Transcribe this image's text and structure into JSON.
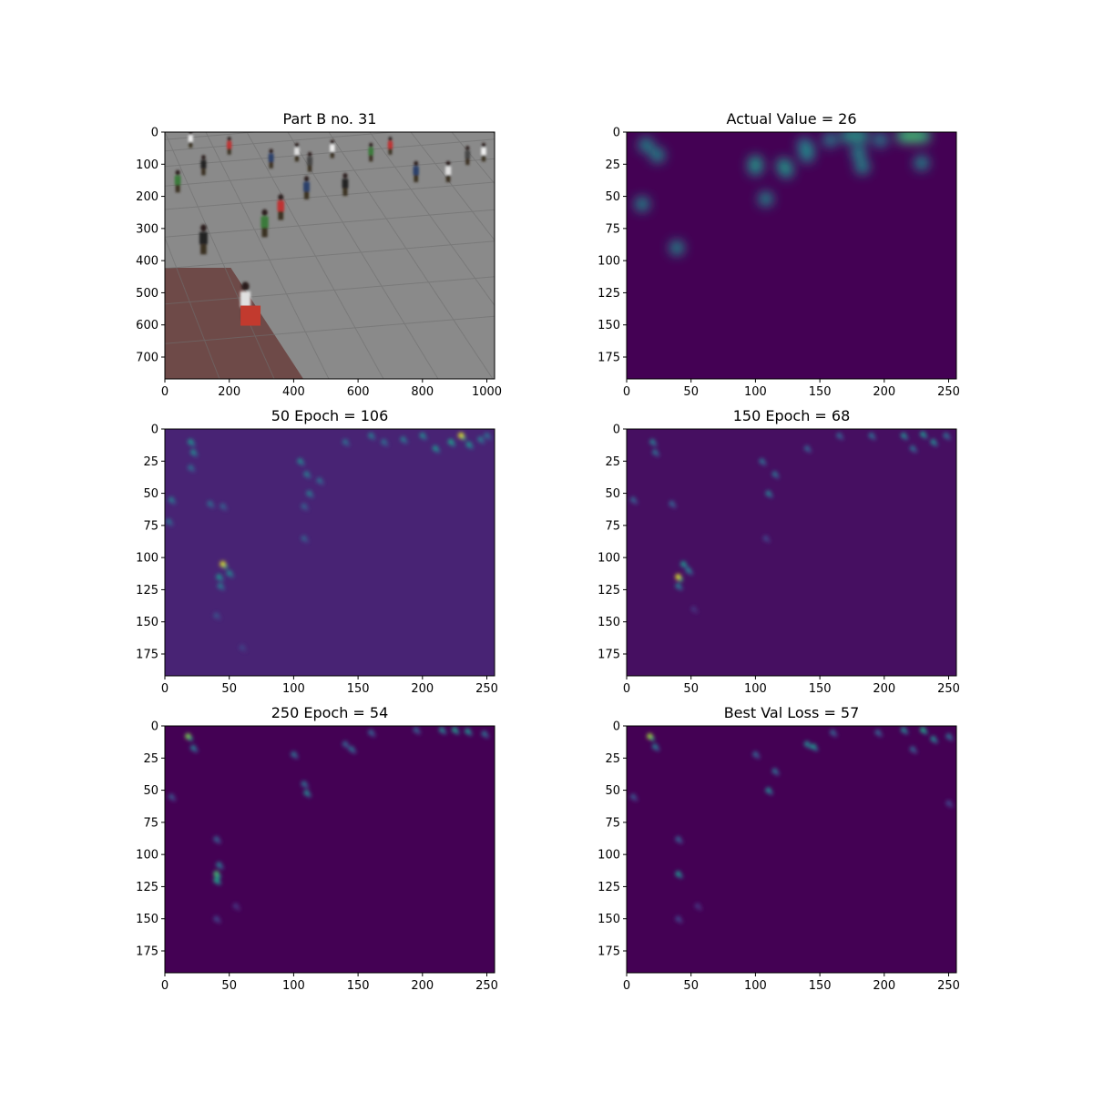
{
  "figure": {
    "background": "#ffffff",
    "layout": "3x2 grid"
  },
  "colors": {
    "viridis_low": "#440154",
    "viridis_mid": "#21918c",
    "viridis_high": "#fde725",
    "pavement": "#8a8a8a",
    "brick": "#6e4a48"
  },
  "chart_data": [
    {
      "type": "heatmap",
      "title": "Part B no. 31",
      "content": "photo",
      "xlim": [
        0,
        1024
      ],
      "ylim": [
        768,
        0
      ],
      "xticks": [
        0,
        200,
        400,
        600,
        800,
        1000
      ],
      "yticks": [
        0,
        100,
        200,
        300,
        400,
        500,
        600,
        700
      ],
      "crowd": [
        [
          80,
          20
        ],
        [
          120,
          100
        ],
        [
          40,
          150
        ],
        [
          200,
          40
        ],
        [
          330,
          80
        ],
        [
          410,
          60
        ],
        [
          450,
          90
        ],
        [
          520,
          50
        ],
        [
          560,
          160
        ],
        [
          640,
          60
        ],
        [
          700,
          40
        ],
        [
          780,
          120
        ],
        [
          880,
          120
        ],
        [
          940,
          70
        ],
        [
          990,
          60
        ],
        [
          120,
          330
        ],
        [
          310,
          280
        ],
        [
          360,
          230
        ],
        [
          440,
          170
        ],
        [
          250,
          520
        ]
      ]
    },
    {
      "type": "heatmap",
      "title": "Actual Value = 26",
      "content": "ground_truth",
      "background": 0.0,
      "xlim": [
        0,
        256
      ],
      "ylim": [
        192,
        0
      ],
      "xticks": [
        0,
        50,
        100,
        150,
        200,
        250
      ],
      "yticks": [
        0,
        25,
        50,
        75,
        100,
        125,
        150,
        175
      ],
      "blobs": [
        [
          15,
          10,
          0.5
        ],
        [
          24,
          18,
          0.5
        ],
        [
          100,
          24,
          0.55
        ],
        [
          100,
          28,
          0.5
        ],
        [
          122,
          26,
          0.55
        ],
        [
          124,
          30,
          0.5
        ],
        [
          140,
          14,
          0.5
        ],
        [
          140,
          18,
          0.45
        ],
        [
          138,
          10,
          0.4
        ],
        [
          158,
          6,
          0.45
        ],
        [
          172,
          3,
          0.55
        ],
        [
          182,
          3,
          0.55
        ],
        [
          180,
          16,
          0.5
        ],
        [
          183,
          27,
          0.5
        ],
        [
          197,
          6,
          0.45
        ],
        [
          215,
          3,
          0.65
        ],
        [
          222,
          3,
          0.7
        ],
        [
          230,
          3,
          0.65
        ],
        [
          229,
          24,
          0.5
        ],
        [
          108,
          52,
          0.5
        ],
        [
          12,
          56,
          0.5
        ],
        [
          39,
          90,
          0.5
        ]
      ]
    },
    {
      "type": "heatmap",
      "title": "50 Epoch = 106",
      "content": "prediction",
      "background": 0.1,
      "xlim": [
        0,
        256
      ],
      "ylim": [
        192,
        0
      ],
      "xticks": [
        0,
        50,
        100,
        150,
        200,
        250
      ],
      "yticks": [
        0,
        25,
        50,
        75,
        100,
        125,
        150,
        175
      ],
      "blobs": [
        [
          20,
          10,
          0.5
        ],
        [
          22,
          18,
          0.45
        ],
        [
          20,
          30,
          0.35
        ],
        [
          5,
          55,
          0.4
        ],
        [
          35,
          58,
          0.35
        ],
        [
          45,
          60,
          0.3
        ],
        [
          3,
          72,
          0.35
        ],
        [
          105,
          25,
          0.45
        ],
        [
          110,
          35,
          0.4
        ],
        [
          120,
          40,
          0.35
        ],
        [
          112,
          50,
          0.4
        ],
        [
          108,
          60,
          0.3
        ],
        [
          140,
          10,
          0.35
        ],
        [
          160,
          5,
          0.4
        ],
        [
          170,
          10,
          0.35
        ],
        [
          185,
          8,
          0.4
        ],
        [
          200,
          5,
          0.45
        ],
        [
          210,
          15,
          0.5
        ],
        [
          222,
          10,
          0.55
        ],
        [
          230,
          5,
          0.95
        ],
        [
          236,
          12,
          0.5
        ],
        [
          245,
          8,
          0.4
        ],
        [
          250,
          5,
          0.35
        ],
        [
          45,
          105,
          0.95
        ],
        [
          42,
          115,
          0.5
        ],
        [
          50,
          112,
          0.45
        ],
        [
          43,
          122,
          0.4
        ],
        [
          108,
          85,
          0.3
        ],
        [
          40,
          145,
          0.25
        ],
        [
          60,
          170,
          0.2
        ]
      ]
    },
    {
      "type": "heatmap",
      "title": "150 Epoch = 68",
      "content": "prediction",
      "background": 0.04,
      "xlim": [
        0,
        256
      ],
      "ylim": [
        192,
        0
      ],
      "xticks": [
        0,
        50,
        100,
        150,
        200,
        250
      ],
      "yticks": [
        0,
        25,
        50,
        75,
        100,
        125,
        150,
        175
      ],
      "blobs": [
        [
          20,
          10,
          0.4
        ],
        [
          22,
          18,
          0.35
        ],
        [
          5,
          55,
          0.3
        ],
        [
          35,
          58,
          0.3
        ],
        [
          105,
          25,
          0.35
        ],
        [
          115,
          35,
          0.35
        ],
        [
          110,
          50,
          0.4
        ],
        [
          140,
          15,
          0.3
        ],
        [
          165,
          5,
          0.3
        ],
        [
          190,
          5,
          0.35
        ],
        [
          215,
          5,
          0.45
        ],
        [
          230,
          4,
          0.5
        ],
        [
          238,
          10,
          0.45
        ],
        [
          248,
          5,
          0.35
        ],
        [
          222,
          15,
          0.35
        ],
        [
          40,
          115,
          0.95
        ],
        [
          44,
          105,
          0.5
        ],
        [
          48,
          110,
          0.4
        ],
        [
          40,
          122,
          0.4
        ],
        [
          108,
          85,
          0.2
        ],
        [
          52,
          140,
          0.15
        ]
      ]
    },
    {
      "type": "heatmap",
      "title": "250 Epoch = 54",
      "content": "prediction",
      "background": 0.0,
      "xlim": [
        0,
        256
      ],
      "ylim": [
        192,
        0
      ],
      "xticks": [
        0,
        50,
        100,
        150,
        200,
        250
      ],
      "yticks": [
        0,
        25,
        50,
        75,
        100,
        125,
        150,
        175
      ],
      "blobs": [
        [
          18,
          8,
          0.8
        ],
        [
          22,
          17,
          0.4
        ],
        [
          5,
          55,
          0.25
        ],
        [
          100,
          22,
          0.35
        ],
        [
          108,
          45,
          0.35
        ],
        [
          110,
          52,
          0.45
        ],
        [
          140,
          14,
          0.3
        ],
        [
          145,
          18,
          0.35
        ],
        [
          160,
          5,
          0.3
        ],
        [
          195,
          3,
          0.3
        ],
        [
          215,
          3,
          0.45
        ],
        [
          225,
          3,
          0.55
        ],
        [
          235,
          4,
          0.5
        ],
        [
          248,
          6,
          0.35
        ],
        [
          40,
          115,
          0.7
        ],
        [
          40,
          120,
          0.6
        ],
        [
          42,
          108,
          0.4
        ],
        [
          40,
          88,
          0.3
        ],
        [
          40,
          150,
          0.2
        ],
        [
          55,
          140,
          0.15
        ]
      ]
    },
    {
      "type": "heatmap",
      "title": "Best Val Loss = 57",
      "content": "prediction",
      "background": 0.0,
      "xlim": [
        0,
        256
      ],
      "ylim": [
        192,
        0
      ],
      "xticks": [
        0,
        50,
        100,
        150,
        200,
        250
      ],
      "yticks": [
        0,
        25,
        50,
        75,
        100,
        125,
        150,
        175
      ],
      "blobs": [
        [
          18,
          8,
          0.85
        ],
        [
          22,
          16,
          0.4
        ],
        [
          5,
          55,
          0.25
        ],
        [
          100,
          22,
          0.3
        ],
        [
          115,
          35,
          0.35
        ],
        [
          110,
          50,
          0.45
        ],
        [
          140,
          14,
          0.45
        ],
        [
          145,
          16,
          0.5
        ],
        [
          160,
          5,
          0.3
        ],
        [
          195,
          5,
          0.3
        ],
        [
          215,
          3,
          0.45
        ],
        [
          230,
          3,
          0.6
        ],
        [
          238,
          10,
          0.45
        ],
        [
          250,
          8,
          0.35
        ],
        [
          222,
          18,
          0.3
        ],
        [
          40,
          115,
          0.5
        ],
        [
          40,
          88,
          0.3
        ],
        [
          40,
          150,
          0.2
        ],
        [
          55,
          140,
          0.15
        ],
        [
          250,
          60,
          0.2
        ]
      ]
    }
  ]
}
